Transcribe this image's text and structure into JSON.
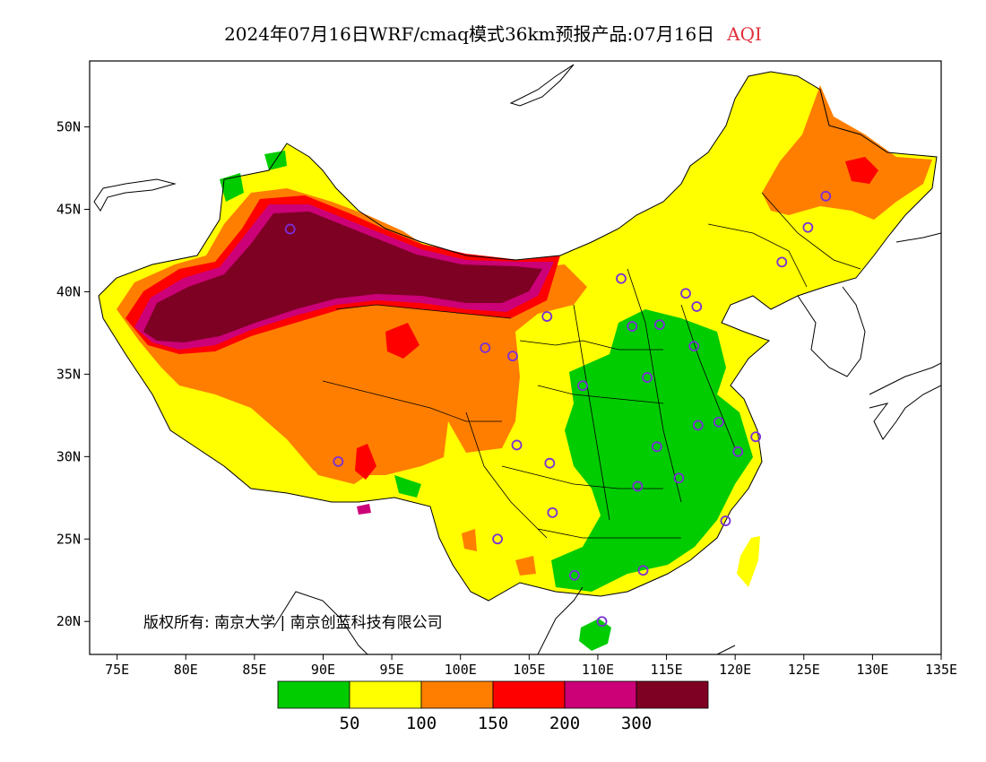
{
  "title": {
    "text": "2024年07月16日WRF/cmaq模式36km预报产品:07月16日",
    "variable": "AQI",
    "variable_color": "#e0303a"
  },
  "map": {
    "lon_range": [
      73,
      135
    ],
    "lat_range": [
      18,
      54
    ],
    "x_ticks": [
      {
        "lon": 75,
        "label": "75E"
      },
      {
        "lon": 80,
        "label": "80E"
      },
      {
        "lon": 85,
        "label": "85E"
      },
      {
        "lon": 90,
        "label": "90E"
      },
      {
        "lon": 95,
        "label": "95E"
      },
      {
        "lon": 100,
        "label": "100E"
      },
      {
        "lon": 105,
        "label": "105E"
      },
      {
        "lon": 110,
        "label": "110E"
      },
      {
        "lon": 115,
        "label": "115E"
      },
      {
        "lon": 120,
        "label": "120E"
      },
      {
        "lon": 125,
        "label": "125E"
      },
      {
        "lon": 130,
        "label": "130E"
      },
      {
        "lon": 135,
        "label": "135E"
      }
    ],
    "y_ticks": [
      {
        "lat": 20,
        "label": "20N"
      },
      {
        "lat": 25,
        "label": "25N"
      },
      {
        "lat": 30,
        "label": "30N"
      },
      {
        "lat": 35,
        "label": "35N"
      },
      {
        "lat": 40,
        "label": "40N"
      },
      {
        "lat": 45,
        "label": "45N"
      },
      {
        "lat": 50,
        "label": "50N"
      }
    ],
    "copyright": "版权所有: 南京大学 | 南京创蓝科技有限公司",
    "cities": [
      [
        87.6,
        43.8
      ],
      [
        91.1,
        29.7
      ],
      [
        101.8,
        36.6
      ],
      [
        103.8,
        36.1
      ],
      [
        106.3,
        38.5
      ],
      [
        104.1,
        30.7
      ],
      [
        106.5,
        29.6
      ],
      [
        106.7,
        26.6
      ],
      [
        102.7,
        25.0
      ],
      [
        108.3,
        22.8
      ],
      [
        113.3,
        23.1
      ],
      [
        110.3,
        20.0
      ],
      [
        112.5,
        37.9
      ],
      [
        114.5,
        38.0
      ],
      [
        111.7,
        40.8
      ],
      [
        116.4,
        39.9
      ],
      [
        117.2,
        39.1
      ],
      [
        117.0,
        36.7
      ],
      [
        113.6,
        34.8
      ],
      [
        108.9,
        34.3
      ],
      [
        114.3,
        30.6
      ],
      [
        112.9,
        28.2
      ],
      [
        115.9,
        28.7
      ],
      [
        117.3,
        31.9
      ],
      [
        118.8,
        32.1
      ],
      [
        120.2,
        30.3
      ],
      [
        121.5,
        31.2
      ],
      [
        119.3,
        26.1
      ],
      [
        123.4,
        41.8
      ],
      [
        125.3,
        43.9
      ],
      [
        126.6,
        45.8
      ]
    ]
  },
  "legend": {
    "colors": [
      "#00cc00",
      "#ffff00",
      "#ff7e00",
      "#ff0000",
      "#cc0077",
      "#7e0023"
    ],
    "ticks": [
      "50",
      "100",
      "150",
      "200",
      "300"
    ]
  }
}
